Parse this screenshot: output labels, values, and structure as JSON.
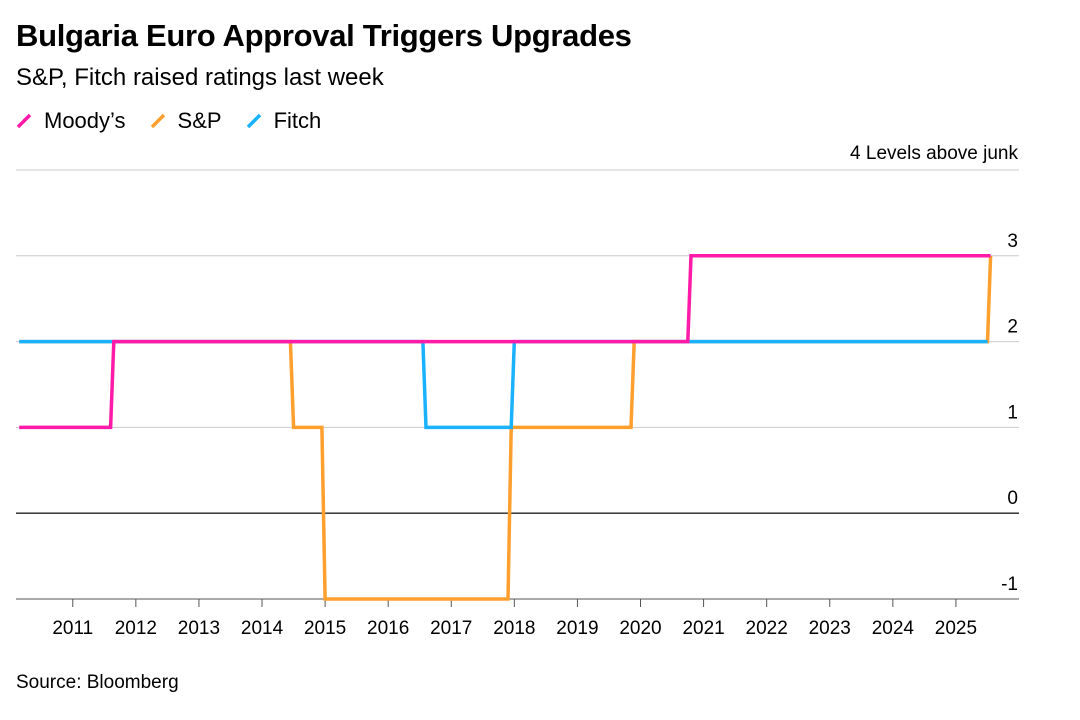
{
  "title": "Bulgaria Euro Approval Triggers Upgrades",
  "subtitle": "S&P, Fitch raised ratings last week",
  "source": "Source: Bloomberg",
  "chart_data": {
    "type": "line",
    "step": true,
    "ylabel": "4 Levels above junk",
    "ylim": [
      -1,
      4
    ],
    "yticks": [
      -1,
      0,
      1,
      2,
      3,
      4
    ],
    "ytick_labels": [
      "-1",
      "0",
      "1",
      "2",
      "3",
      ""
    ],
    "xticks": [
      2011,
      2012,
      2013,
      2014,
      2015,
      2016,
      2017,
      2018,
      2019,
      2020,
      2021,
      2022,
      2023,
      2024,
      2025
    ],
    "xlim": [
      2010.1,
      2026.0
    ],
    "grid": true,
    "legend_position": "top-left",
    "series": [
      {
        "name": "Moody’s",
        "color": "#ff1aa8",
        "points": [
          [
            2010.15,
            1
          ],
          [
            2011.6,
            1
          ],
          [
            2011.65,
            2
          ],
          [
            2020.75,
            2
          ],
          [
            2020.8,
            3
          ],
          [
            2025.55,
            3
          ]
        ]
      },
      {
        "name": "S&P",
        "color": "#ff9f2e",
        "points": [
          [
            2010.15,
            2
          ],
          [
            2014.45,
            2
          ],
          [
            2014.5,
            1
          ],
          [
            2014.95,
            1
          ],
          [
            2015.0,
            -1
          ],
          [
            2017.9,
            -1
          ],
          [
            2017.95,
            1
          ],
          [
            2019.85,
            1
          ],
          [
            2019.9,
            2
          ],
          [
            2025.5,
            2
          ],
          [
            2025.55,
            3
          ]
        ]
      },
      {
        "name": "Fitch",
        "color": "#1ab2ff",
        "points": [
          [
            2010.15,
            2
          ],
          [
            2016.55,
            2
          ],
          [
            2016.6,
            1
          ],
          [
            2017.95,
            1
          ],
          [
            2018.0,
            2
          ],
          [
            2025.5,
            2
          ]
        ]
      }
    ]
  }
}
